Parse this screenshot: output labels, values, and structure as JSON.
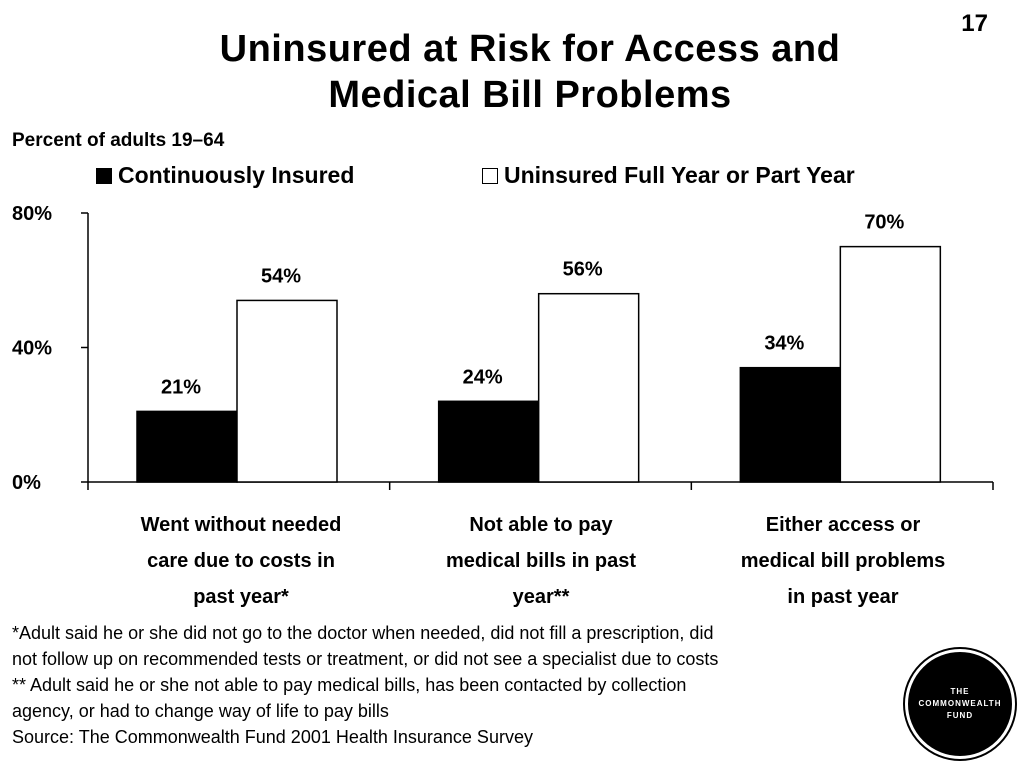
{
  "slide_number": "17",
  "title_line1": "Uninsured at Risk for Access and",
  "title_line2": "Medical Bill Problems",
  "colors": {
    "continuously_insured": "#000000",
    "uninsured": "#ffffff",
    "outline": "#000000"
  },
  "chart_data": {
    "type": "bar",
    "subtitle": "Percent of adults 19–64",
    "categories": [
      [
        "Went without needed",
        "care due to costs in",
        "past year*"
      ],
      [
        "Not able to pay",
        "medical bills in past",
        "year**"
      ],
      [
        "Either access or",
        "medical bill problems",
        "in past year"
      ]
    ],
    "series": [
      {
        "name": "Continuously Insured",
        "values": [
          21,
          24,
          34
        ],
        "labels": [
          "21%",
          "24%",
          "34%"
        ]
      },
      {
        "name": "Uninsured Full Year or Part Year",
        "values": [
          54,
          56,
          70
        ],
        "labels": [
          "54%",
          "56%",
          "70%"
        ]
      }
    ],
    "y_ticks": [
      "0%",
      "40%",
      "80%"
    ],
    "y_tick_values": [
      0,
      40,
      80
    ],
    "ylim": [
      0,
      80
    ],
    "grid": false,
    "legend_position": "top"
  },
  "footnotes": [
    "*Adult said he or she did not go to the doctor when needed, did not fill a prescription, did",
    "not follow up on recommended tests or treatment, or did not see a specialist due to costs",
    "** Adult said he or she not able to pay medical bills, has been contacted by collection",
    "agency, or had to change way of life to pay bills",
    "Source: The Commonwealth Fund 2001 Health Insurance Survey"
  ],
  "logo": {
    "line1": "THE",
    "line2": "COMMONWEALTH",
    "line3": "FUND"
  }
}
